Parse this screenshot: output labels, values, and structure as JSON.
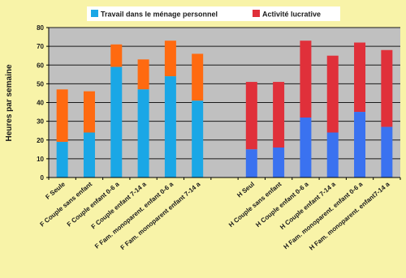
{
  "chart_data": {
    "type": "bar",
    "stacked": true,
    "ylabel": "Heures par semaine",
    "ylim": [
      0,
      80
    ],
    "yticks": [
      0,
      10,
      20,
      30,
      40,
      50,
      60,
      70,
      80
    ],
    "grid": true,
    "legend_position": "top",
    "legend": [
      {
        "label": "Travail dans le ménage personnel",
        "color": "#1AA7E6"
      },
      {
        "label": "Activité lucrative",
        "color": "#E0303A"
      }
    ],
    "groups": [
      {
        "name": "F",
        "colors": {
          "bottom": "#1AA7E6",
          "top": "#FF6A10"
        },
        "categories": [
          "F Seule",
          "F Couple sans enfant",
          "F Couple enfant 0-6 a",
          "F Couple enfant 7-14 a",
          "F Fam. monoparent. enfant 0-6 a",
          "F Fam. monoparent enfant 7-14 a"
        ],
        "bottom": [
          19,
          24,
          59,
          47,
          54,
          41
        ],
        "total": [
          47,
          46,
          71,
          63,
          73,
          66
        ]
      },
      {
        "name": "H",
        "colors": {
          "bottom": "#3A72F0",
          "top": "#E0303A"
        },
        "categories": [
          "H Seul",
          "H Couple sans enfant",
          "H Couple enfant 0-6 a",
          "H Couple enfant 7-14 a",
          "H Fam. monoparent. enfant 0-6 a",
          "H Fam. monoparent. enfant7-14 a"
        ],
        "bottom": [
          15,
          16,
          32,
          24,
          35,
          27
        ],
        "total": [
          51,
          51,
          73,
          65,
          72,
          68
        ]
      }
    ]
  },
  "colors": {
    "background": "#F8F3A8",
    "plot_area": "#C0C0C0",
    "grid": "#1A1A1A"
  }
}
